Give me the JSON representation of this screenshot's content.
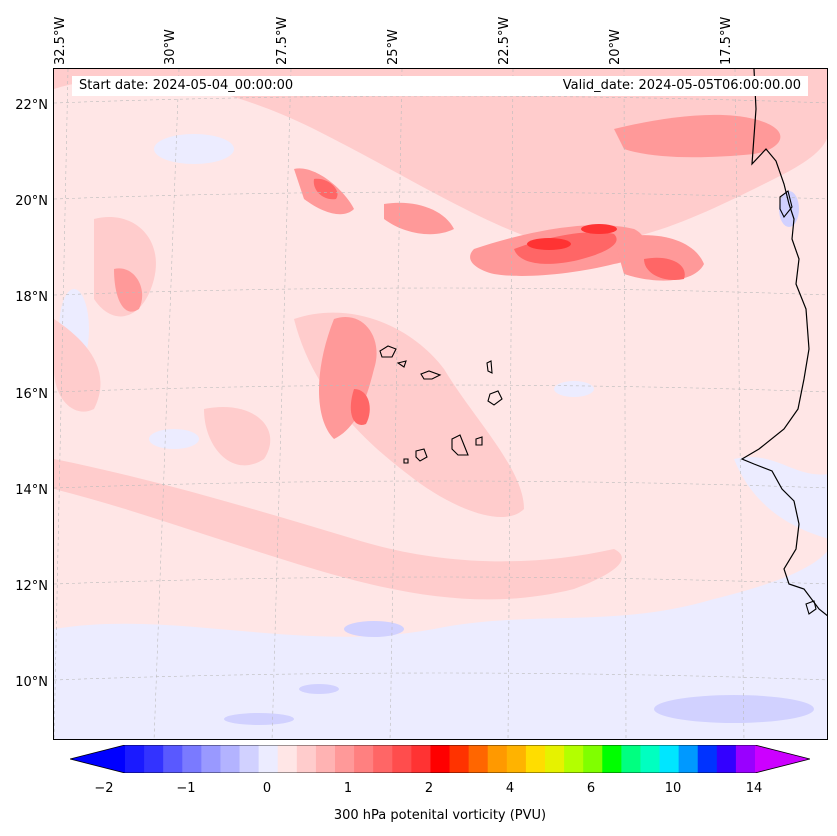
{
  "map": {
    "start_date": "Start date: 2024-05-04_00:00:00",
    "valid_date": "Valid_date: 2024-05-05T06:00:00.00",
    "lon_labels": [
      "32.5°W",
      "30°W",
      "27.5°W",
      "25°W",
      "22.5°W",
      "20°W",
      "17.5°W"
    ],
    "lat_labels": [
      "22°N",
      "20°N",
      "18°N",
      "16°N",
      "14°N",
      "12°N",
      "10°N"
    ],
    "background_color": "#ffe6e6",
    "coastline_color": "#000000",
    "gridlines": true
  },
  "colorbar": {
    "label": "300 hPa potenital vorticity (PVU)",
    "tick_labels": [
      "−2",
      "−1",
      "0",
      "1",
      "2",
      "4",
      "6",
      "10",
      "14"
    ],
    "colors": [
      "#1a1aff",
      "#3333ff",
      "#5959ff",
      "#7a7aff",
      "#9999ff",
      "#b3b3ff",
      "#d1d1ff",
      "#ececff",
      "#ffe6e6",
      "#ffcccc",
      "#ffb3b3",
      "#ff9999",
      "#ff8080",
      "#ff6666",
      "#ff4d4d",
      "#ff3333",
      "#ff0000",
      "#ff3300",
      "#ff6600",
      "#ff9900",
      "#ffb300",
      "#ffdd00",
      "#e6f200",
      "#b3ff00",
      "#80ff00",
      "#00ff00",
      "#00ff80",
      "#00ffc0",
      "#00e6ff",
      "#0099ff",
      "#0033ff",
      "#3300ff",
      "#9900ff"
    ],
    "min_color": "#0000ff",
    "max_color": "#cc00ff"
  }
}
